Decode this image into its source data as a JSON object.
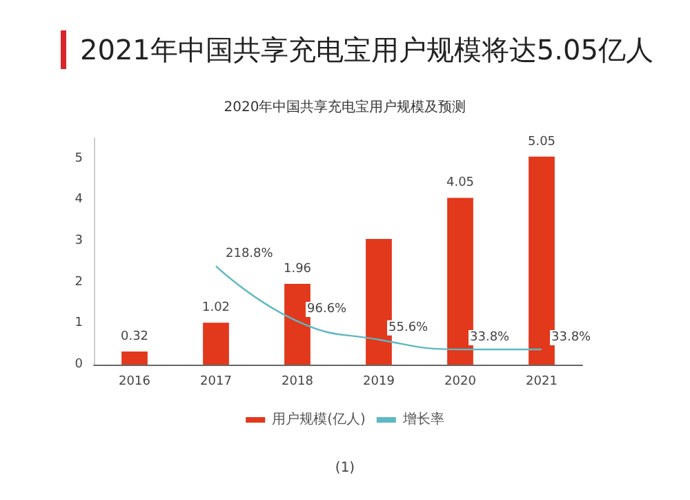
{
  "chart_data": {
    "type": "bar",
    "title": "2021年中国共享充电宝用户规模将达5.05亿人",
    "subtitle": "2020年中国共享充电宝用户规模及预测",
    "annotations": [
      "(1)"
    ],
    "categories": [
      "2016",
      "2017",
      "2018",
      "2019",
      "2020",
      "2021"
    ],
    "series": [
      {
        "name": "用户规模(亿人)",
        "color": "#e2381c",
        "values": [
          0.32,
          1.02,
          1.96,
          3.05,
          4.05,
          5.05
        ],
        "value_labels": [
          "0.32",
          "1.02",
          "1.96",
          null,
          "4.05",
          "5.05"
        ]
      },
      {
        "name": "增长率",
        "type": "line",
        "axis": "y2",
        "color": "#5db8c2",
        "values": [
          null,
          218.8,
          96.6,
          55.6,
          33.8,
          33.8
        ],
        "value_labels": [
          null,
          "218.8%",
          "96.6%",
          "55.6%",
          "33.8%",
          "33.8%"
        ]
      }
    ],
    "ylim": [
      0,
      5.5
    ],
    "yticks": [
      0,
      1,
      2,
      3,
      4,
      5
    ],
    "tick_labels": "xy",
    "grid": false,
    "legend": "bottom",
    "marker": "none"
  }
}
